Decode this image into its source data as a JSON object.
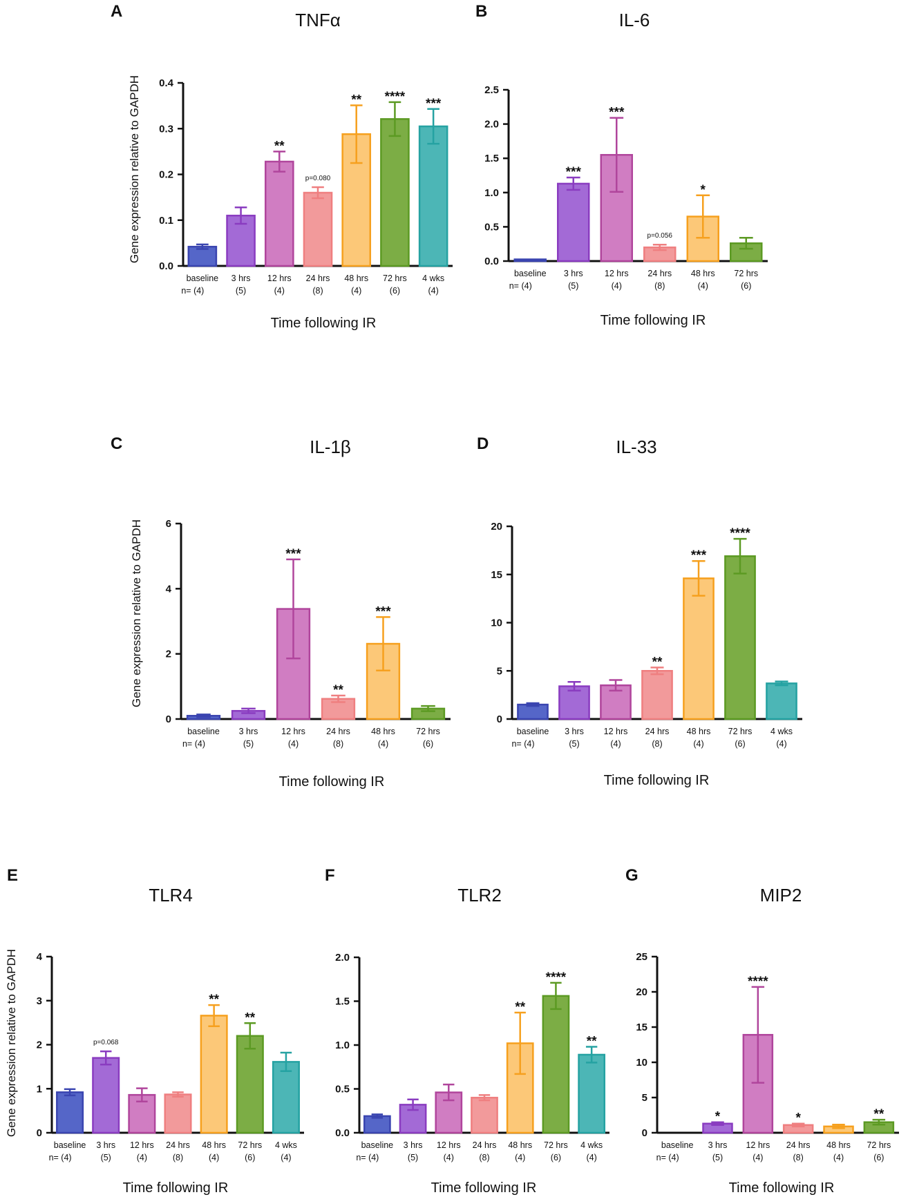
{
  "y_axis_label": "Gene expression relative to GAPDH",
  "colors": {
    "baseline": "#3a45b0",
    "3 hrs": "#8a3cc0",
    "12 hrs": "#b0459c",
    "24 hrs": "#ef7f80",
    "48 hrs": "#f6a01e",
    "72 hrs": "#5c9a23",
    "4 wks": "#25a2a2"
  },
  "fills": {
    "baseline": "#5566c8",
    "3 hrs": "#a36ad6",
    "12 hrs": "#d07dc2",
    "24 hrs": "#f29a9b",
    "48 hrs": "#fcc878",
    "72 hrs": "#7cad45",
    "4 wks": "#4cb6b6"
  },
  "chart_data": [
    {
      "panel": "A",
      "title": "TNFα",
      "type": "bar",
      "xlabel": "Time following IR",
      "ylabel": "Gene expression relative to GAPDH",
      "ylim": [
        0,
        0.4
      ],
      "yticks": [
        "0.0",
        "0.1",
        "0.2",
        "0.3",
        "0.4"
      ],
      "categories": [
        "baseline",
        "3 hrs",
        "12 hrs",
        "24 hrs",
        "48 hrs",
        "72 hrs",
        "4 wks"
      ],
      "n": [
        "n= (4)",
        "(5)",
        "(4)",
        "(8)",
        "(4)",
        "(6)",
        "(4)"
      ],
      "values": [
        0.042,
        0.11,
        0.228,
        0.16,
        0.288,
        0.321,
        0.305
      ],
      "errors": [
        0.005,
        0.018,
        0.022,
        0.012,
        0.063,
        0.037,
        0.038
      ],
      "annotations": [
        "",
        "",
        "**",
        "p=0.080",
        "**",
        "****",
        "***"
      ]
    },
    {
      "panel": "B",
      "title": "IL-6",
      "type": "bar",
      "xlabel": "Time following IR",
      "ylabel": "",
      "ylim": [
        0,
        2.5
      ],
      "yticks": [
        "0.0",
        "0.5",
        "1.0",
        "1.5",
        "2.0",
        "2.5"
      ],
      "categories": [
        "baseline",
        "3 hrs",
        "12 hrs",
        "24 hrs",
        "48 hrs",
        "72 hrs"
      ],
      "n": [
        "n= (4)",
        "(5)",
        "(4)",
        "(8)",
        "(4)",
        "(6)"
      ],
      "values": [
        0.01,
        1.13,
        1.55,
        0.2,
        0.65,
        0.26
      ],
      "errors": [
        0.005,
        0.09,
        0.54,
        0.04,
        0.31,
        0.08
      ],
      "annotations": [
        "",
        "***",
        "***",
        "p=0.056",
        "*",
        ""
      ]
    },
    {
      "panel": "C",
      "title": "IL-1β",
      "type": "bar",
      "xlabel": "Time following IR",
      "ylabel": "Gene expression relative to GAPDH",
      "ylim": [
        0,
        6
      ],
      "yticks": [
        "0",
        "2",
        "4",
        "6"
      ],
      "categories": [
        "baseline",
        "3 hrs",
        "12 hrs",
        "24 hrs",
        "48 hrs",
        "72 hrs"
      ],
      "n": [
        "n= (4)",
        "(5)",
        "(4)",
        "(8)",
        "(4)",
        "(6)"
      ],
      "values": [
        0.1,
        0.25,
        3.38,
        0.62,
        2.31,
        0.32
      ],
      "errors": [
        0.04,
        0.07,
        1.52,
        0.1,
        0.82,
        0.08
      ],
      "annotations": [
        "",
        "",
        "***",
        "**",
        "***",
        ""
      ]
    },
    {
      "panel": "D",
      "title": "IL-33",
      "type": "bar",
      "xlabel": "Time following IR",
      "ylabel": "",
      "ylim": [
        0,
        20
      ],
      "yticks": [
        "0",
        "5",
        "10",
        "15",
        "20"
      ],
      "categories": [
        "baseline",
        "3 hrs",
        "12 hrs",
        "24 hrs",
        "48 hrs",
        "72 hrs",
        "4 wks"
      ],
      "n": [
        "n= (4)",
        "(5)",
        "(4)",
        "(8)",
        "(4)",
        "(6)",
        "(4)"
      ],
      "values": [
        1.5,
        3.4,
        3.5,
        5.0,
        14.6,
        16.9,
        3.7
      ],
      "errors": [
        0.15,
        0.45,
        0.55,
        0.35,
        1.8,
        1.8,
        0.2
      ],
      "annotations": [
        "",
        "",
        "",
        "**",
        "***",
        "****",
        ""
      ]
    },
    {
      "panel": "E",
      "title": "TLR4",
      "type": "bar",
      "xlabel": "Time following IR",
      "ylabel": "Gene expression relative to GAPDH",
      "ylim": [
        0,
        4
      ],
      "yticks": [
        "0",
        "1",
        "2",
        "3",
        "4"
      ],
      "categories": [
        "baseline",
        "3 hrs",
        "12 hrs",
        "24 hrs",
        "48 hrs",
        "72 hrs",
        "4 wks"
      ],
      "n": [
        "n= (4)",
        "(5)",
        "(4)",
        "(8)",
        "(4)",
        "(6)",
        "(4)"
      ],
      "values": [
        0.92,
        1.7,
        0.86,
        0.87,
        2.66,
        2.2,
        1.61
      ],
      "errors": [
        0.07,
        0.15,
        0.15,
        0.05,
        0.24,
        0.29,
        0.21
      ],
      "annotations": [
        "",
        "p=0.068",
        "",
        "",
        "**",
        "**",
        ""
      ]
    },
    {
      "panel": "F",
      "title": "TLR2",
      "type": "bar",
      "xlabel": "Time following IR",
      "ylabel": "",
      "ylim": [
        0,
        2.0
      ],
      "yticks": [
        "0.0",
        "0.5",
        "1.0",
        "1.5",
        "2.0"
      ],
      "categories": [
        "baseline",
        "3 hrs",
        "12 hrs",
        "24 hrs",
        "48 hrs",
        "72 hrs",
        "4 wks"
      ],
      "n": [
        "n= (4)",
        "(5)",
        "(4)",
        "(8)",
        "(4)",
        "(6)",
        "(4)"
      ],
      "values": [
        0.19,
        0.32,
        0.46,
        0.4,
        1.02,
        1.56,
        0.89
      ],
      "errors": [
        0.02,
        0.06,
        0.09,
        0.03,
        0.35,
        0.15,
        0.09
      ],
      "annotations": [
        "",
        "",
        "",
        "",
        "**",
        "****",
        "**"
      ]
    },
    {
      "panel": "G",
      "title": "MIP2",
      "type": "bar",
      "xlabel": "Time following IR",
      "ylabel": "",
      "ylim": [
        0,
        25
      ],
      "yticks": [
        "0",
        "5",
        "10",
        "15",
        "20",
        "25"
      ],
      "categories": [
        "baseline",
        "3 hrs",
        "12 hrs",
        "24 hrs",
        "48 hrs",
        "72 hrs"
      ],
      "n": [
        "n= (4)",
        "(5)",
        "(4)",
        "(8)",
        "(4)",
        "(6)"
      ],
      "values": [
        0.0,
        1.3,
        13.9,
        1.1,
        0.9,
        1.5
      ],
      "errors": [
        0.0,
        0.2,
        6.8,
        0.2,
        0.25,
        0.35
      ],
      "annotations": [
        "",
        "*",
        "****",
        "*",
        "",
        "**"
      ]
    }
  ]
}
